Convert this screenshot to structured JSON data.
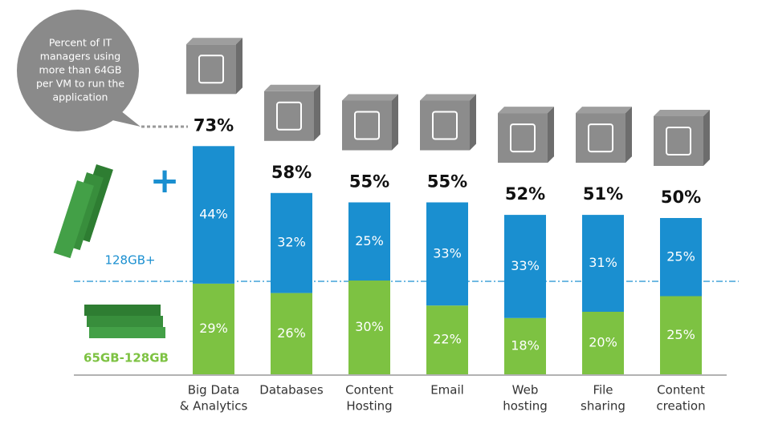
{
  "chart_data": {
    "type": "stacked-bar",
    "callout": [
      "Percent of IT",
      "managers using",
      "more than 64GB",
      "per VM to run the",
      "application"
    ],
    "categories": [
      [
        "Big Data",
        "& Analytics"
      ],
      [
        "Databases"
      ],
      [
        "Content",
        "Hosting"
      ],
      [
        "Email"
      ],
      [
        "Web",
        "hosting"
      ],
      [
        "File",
        "sharing"
      ],
      [
        "Content",
        "creation"
      ]
    ],
    "series": [
      {
        "name": "65GB-128GB",
        "color": "#7dc242",
        "values": [
          29,
          26,
          30,
          22,
          18,
          20,
          25
        ],
        "value_labels": [
          "29%",
          "26%",
          "30%",
          "22%",
          "18%",
          "20%",
          "25%"
        ]
      },
      {
        "name": "128GB+",
        "color": "#1a8fd0",
        "values": [
          44,
          32,
          25,
          33,
          33,
          31,
          25
        ],
        "value_labels": [
          "44%",
          "32%",
          "25%",
          "33%",
          "33%",
          "31%",
          "25%"
        ]
      }
    ],
    "totals": [
      73,
      58,
      55,
      55,
      52,
      51,
      50
    ],
    "total_labels": [
      "73%",
      "58%",
      "55%",
      "55%",
      "52%",
      "51%",
      "50%"
    ]
  }
}
